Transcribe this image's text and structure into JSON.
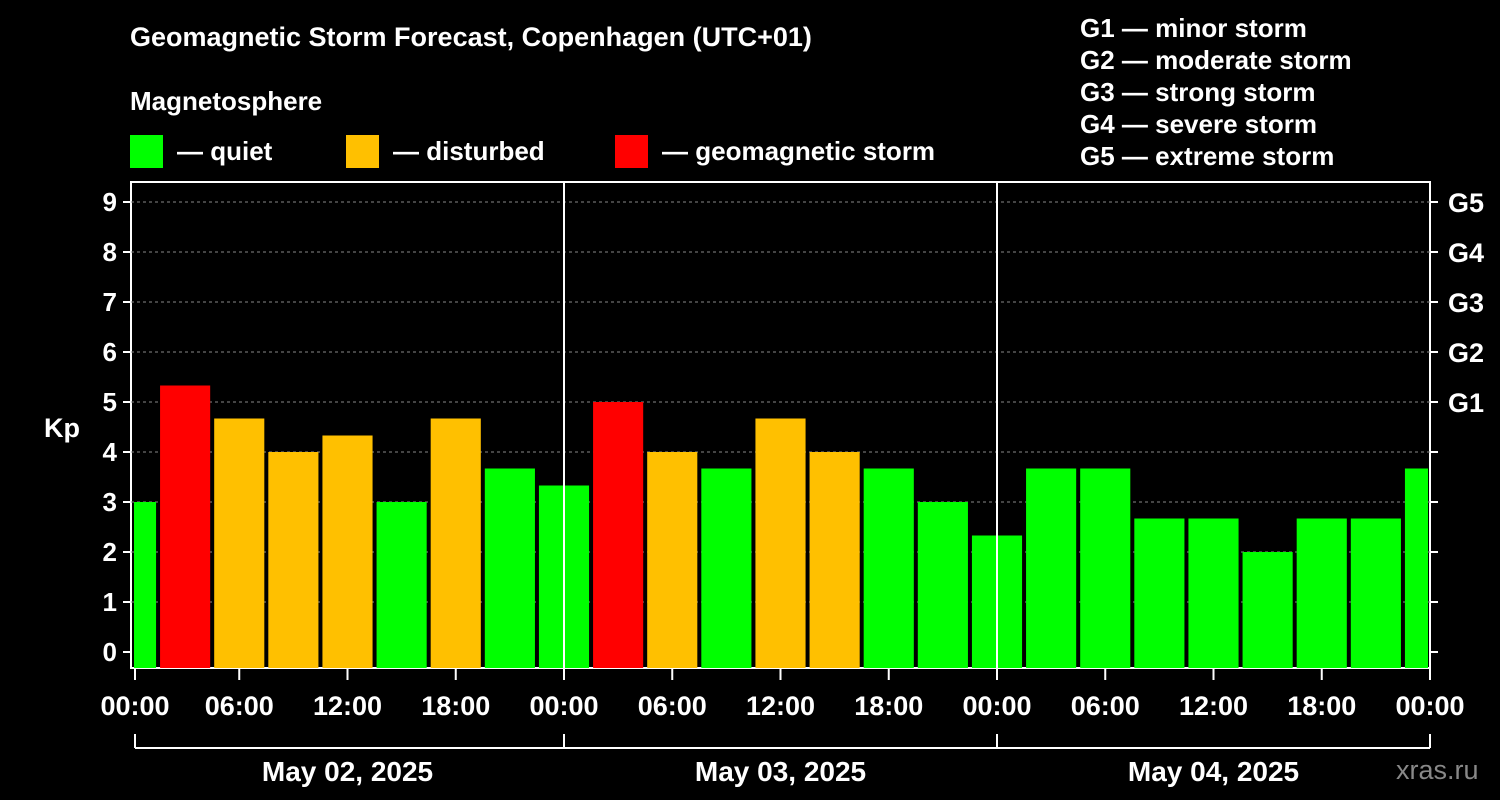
{
  "chart_data": {
    "type": "bar",
    "title": "Geomagnetic Storm Forecast, Copenhagen (UTC+01)",
    "subtitle": "Magnetosphere",
    "ylabel": "Kp",
    "ylim": [
      0,
      9
    ],
    "yticks": [
      "0",
      "1",
      "2",
      "3",
      "4",
      "5",
      "6",
      "7",
      "8",
      "9"
    ],
    "right_ticks": [
      {
        "kp": 5,
        "label": "G1"
      },
      {
        "kp": 6,
        "label": "G2"
      },
      {
        "kp": 7,
        "label": "G3"
      },
      {
        "kp": 8,
        "label": "G4"
      },
      {
        "kp": 9,
        "label": "G5"
      }
    ],
    "grid": true,
    "legend": [
      {
        "label": "— quiet",
        "color": "#00ff00"
      },
      {
        "label": "— disturbed",
        "color": "#ffc000"
      },
      {
        "label": "— geomagnetic storm",
        "color": "#ff0000"
      }
    ],
    "g_scale": [
      "G1 — minor storm",
      "G2 — moderate storm",
      "G3 — strong storm",
      "G4 — severe storm",
      "G5 — extreme storm"
    ],
    "time_ticks": [
      "00:00",
      "06:00",
      "12:00",
      "18:00",
      "00:00",
      "06:00",
      "12:00",
      "18:00",
      "00:00",
      "06:00",
      "12:00",
      "18:00",
      "00:00"
    ],
    "days": [
      "May 02, 2025",
      "May 03, 2025",
      "May 04, 2025"
    ],
    "x": [
      "00:00",
      "03:00",
      "06:00",
      "09:00",
      "12:00",
      "15:00",
      "18:00",
      "21:00",
      "00:00",
      "03:00",
      "06:00",
      "09:00",
      "12:00",
      "15:00",
      "18:00",
      "21:00",
      "00:00",
      "03:00",
      "06:00",
      "09:00",
      "12:00",
      "15:00",
      "18:00",
      "21:00",
      "00:00"
    ],
    "values": [
      3.0,
      5.33,
      4.67,
      4.0,
      4.33,
      3.0,
      4.67,
      3.67,
      3.33,
      5.0,
      4.0,
      3.67,
      4.67,
      4.0,
      3.67,
      3.0,
      2.33,
      3.67,
      3.67,
      2.67,
      2.67,
      2.0,
      2.67,
      2.67,
      3.67
    ],
    "status": [
      "quiet",
      "storm",
      "disturbed",
      "disturbed",
      "disturbed",
      "quiet",
      "disturbed",
      "quiet",
      "quiet",
      "storm",
      "disturbed",
      "quiet",
      "disturbed",
      "disturbed",
      "quiet",
      "quiet",
      "quiet",
      "quiet",
      "quiet",
      "quiet",
      "quiet",
      "quiet",
      "quiet",
      "quiet",
      "quiet"
    ],
    "colors": {
      "quiet": "#00ff00",
      "disturbed": "#ffc000",
      "storm": "#ff0000"
    }
  },
  "watermark": "xras.ru"
}
